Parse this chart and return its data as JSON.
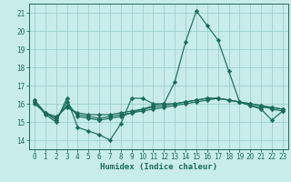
{
  "xlabel": "Humidex (Indice chaleur)",
  "x_values": [
    0,
    1,
    2,
    3,
    4,
    5,
    6,
    7,
    8,
    9,
    10,
    11,
    12,
    13,
    14,
    15,
    16,
    17,
    18,
    19,
    20,
    21,
    22,
    23
  ],
  "series": [
    [
      16.2,
      15.4,
      15.0,
      16.3,
      14.7,
      14.5,
      14.3,
      14.0,
      14.9,
      16.3,
      16.3,
      16.0,
      16.0,
      17.2,
      19.4,
      21.1,
      20.3,
      19.5,
      17.8,
      16.1,
      15.9,
      15.7,
      15.1,
      15.6
    ],
    [
      16.2,
      15.5,
      15.1,
      16.1,
      15.3,
      15.2,
      15.1,
      15.2,
      15.3,
      15.5,
      15.6,
      15.7,
      15.8,
      15.9,
      16.0,
      16.1,
      16.2,
      16.3,
      16.2,
      16.1,
      16.0,
      15.9,
      15.8,
      15.7
    ],
    [
      16.1,
      15.5,
      15.2,
      15.9,
      15.4,
      15.3,
      15.2,
      15.3,
      15.4,
      15.5,
      15.7,
      15.8,
      15.9,
      16.0,
      16.1,
      16.2,
      16.3,
      16.3,
      16.2,
      16.1,
      16.0,
      15.9,
      15.7,
      15.6
    ],
    [
      16.0,
      15.5,
      15.3,
      15.8,
      15.5,
      15.4,
      15.4,
      15.4,
      15.5,
      15.6,
      15.7,
      15.9,
      16.0,
      16.0,
      16.1,
      16.2,
      16.3,
      16.3,
      16.2,
      16.1,
      15.9,
      15.8,
      15.8,
      15.7
    ]
  ],
  "line_color": "#1a6b5a",
  "marker": "D",
  "markersize": 2.2,
  "bg_color": "#c8ecea",
  "grid_color": "#9ecece",
  "ylim": [
    13.5,
    21.5
  ],
  "yticks": [
    14,
    15,
    16,
    17,
    18,
    19,
    20,
    21
  ],
  "xlim": [
    -0.5,
    23.5
  ],
  "xticks": [
    0,
    1,
    2,
    3,
    4,
    5,
    6,
    7,
    8,
    9,
    10,
    11,
    12,
    13,
    14,
    15,
    16,
    17,
    18,
    19,
    20,
    21,
    22,
    23
  ],
  "tick_fontsize": 5.5,
  "xlabel_fontsize": 6.5,
  "linewidth": 0.85
}
